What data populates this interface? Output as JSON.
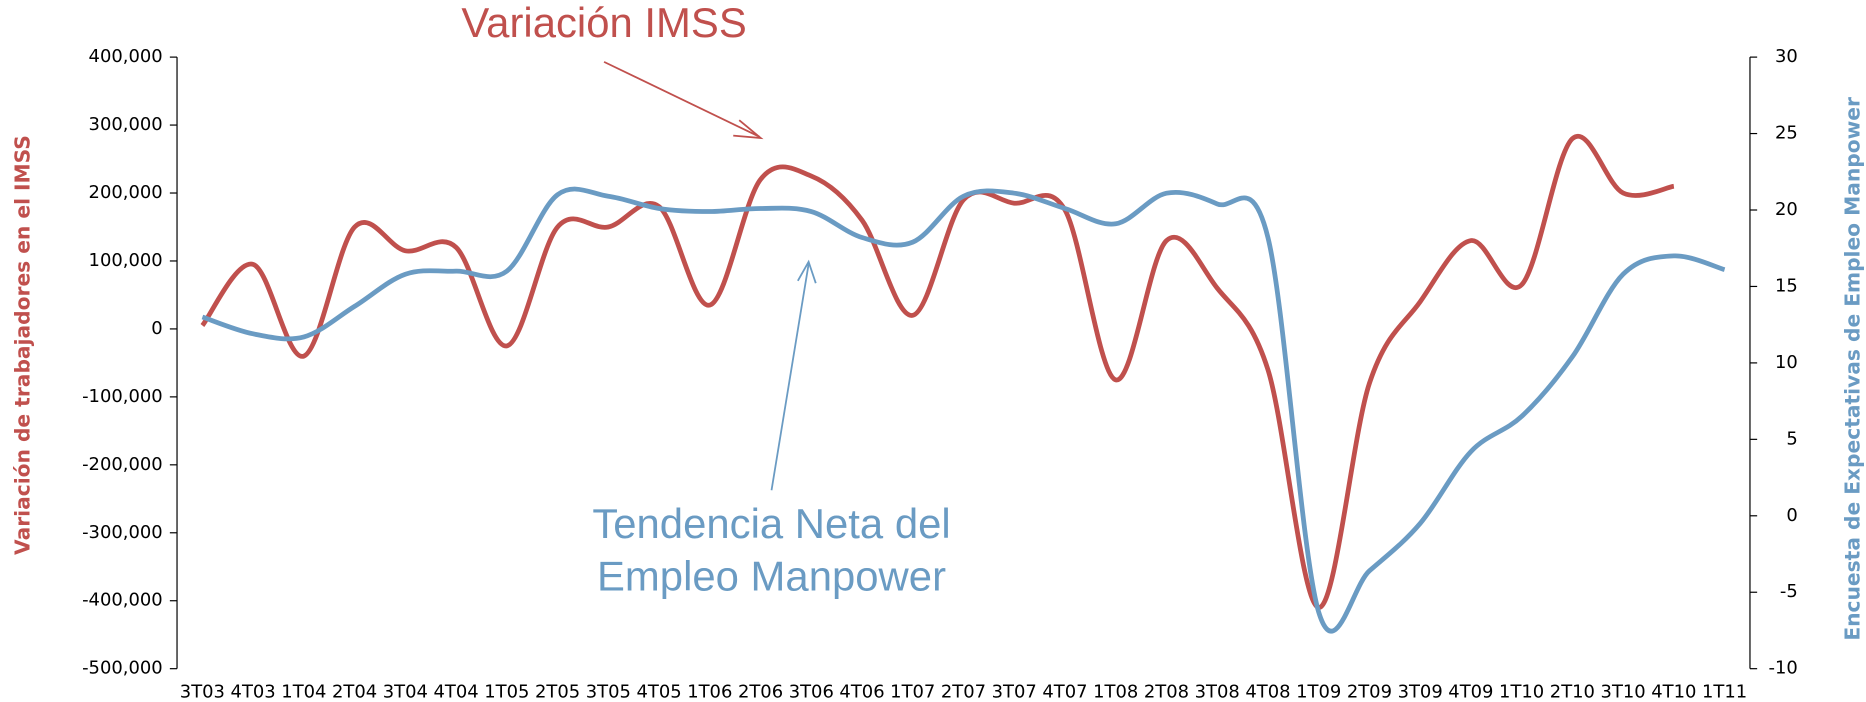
{
  "chart_data": {
    "type": "line",
    "y_label": "Variación de trabajadores en el IMSS",
    "y2_label": "Encuesta de Expectativas de Empleo Manpower",
    "annotations": [
      {
        "lines": [
          "Variación IMSS"
        ],
        "color": "#c0504d"
      },
      {
        "lines": [
          "Tendencia Neta del",
          "Empleo Manpower"
        ],
        "color": "#6a9bc3"
      }
    ],
    "categories": [
      "3T03",
      "4T03",
      "1T04",
      "2T04",
      "3T04",
      "4T04",
      "1T05",
      "2T05",
      "3T05",
      "4T05",
      "1T06",
      "2T06",
      "3T06",
      "4T06",
      "1T07",
      "2T07",
      "3T07",
      "4T07",
      "1T08",
      "2T08",
      "3T08",
      "4T08",
      "1T09",
      "2T09",
      "3T09",
      "4T09",
      "1T10",
      "2T10",
      "3T10",
      "4T10",
      "1T11"
    ],
    "series": [
      {
        "name": "Variación IMSS",
        "color": "#c0504d",
        "values": [
          5000,
          95000,
          -40000,
          150000,
          115000,
          120000,
          -25000,
          150000,
          150000,
          180000,
          35000,
          220000,
          225000,
          160000,
          20000,
          190000,
          185000,
          175000,
          -75000,
          130000,
          60000,
          -60000,
          -410000,
          -80000,
          40000,
          130000,
          65000,
          280000,
          200000,
          210000,
          null
        ]
      },
      {
        "name": "Tendencia Neta del Empleo Manpower",
        "color": "#6a9bc3",
        "axis": "y2",
        "values": [
          13,
          11.9,
          11.7,
          13.7,
          15.8,
          16,
          16,
          21,
          20.9,
          20.1,
          19.9,
          20.1,
          19.9,
          18.2,
          17.9,
          20.9,
          21.1,
          20.1,
          19.1,
          21.1,
          20.4,
          18.2,
          -6.3,
          -3.6,
          -0.5,
          4.2,
          6.5,
          10.4,
          15.8,
          17,
          16.1
        ]
      }
    ],
    "ylim": [
      -500000,
      400000
    ],
    "yticks": [
      {
        "value": -500000,
        "label": "-500,000"
      },
      {
        "value": -400000,
        "label": "-400,000"
      },
      {
        "value": -300000,
        "label": "-300,000"
      },
      {
        "value": -200000,
        "label": "-200,000"
      },
      {
        "value": -100000,
        "label": "-100,000"
      },
      0,
      {
        "value": 100000,
        "label": "100,000"
      },
      {
        "value": 200000,
        "label": "200,000"
      },
      {
        "value": 300000,
        "label": "300,000"
      },
      {
        "value": 400000,
        "label": "400,000"
      }
    ],
    "y2lim": [
      -10,
      30
    ],
    "y2ticks": [
      -10,
      -5,
      0,
      5,
      10,
      15,
      20,
      25,
      30
    ],
    "grid": false
  }
}
